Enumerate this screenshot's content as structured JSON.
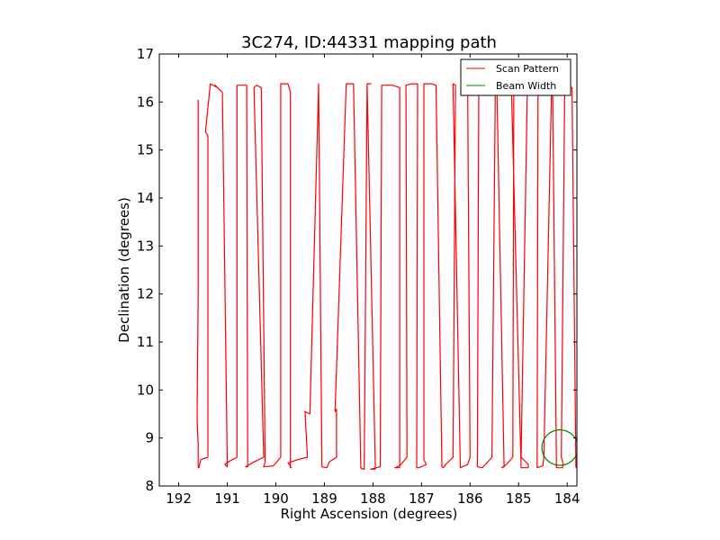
{
  "chart_data": {
    "type": "line",
    "title": "3C274, ID:44331 mapping path",
    "xlabel": "Right Ascension (degrees)",
    "ylabel": "Declination (degrees)",
    "xlim": [
      192.4,
      183.8
    ],
    "ylim": [
      8,
      17
    ],
    "x_ticks": [
      192,
      191,
      190,
      189,
      188,
      187,
      186,
      185,
      184
    ],
    "y_ticks": [
      8,
      9,
      10,
      11,
      12,
      13,
      14,
      15,
      16,
      17
    ],
    "grid": false,
    "legend_position": "top-right",
    "series": [
      {
        "name": "Scan Pattern",
        "color": "#ff0000",
        "x": [
          191.6,
          191.6,
          191.62,
          191.62,
          191.6,
          191.6,
          191.6,
          191.58,
          191.58,
          191.55,
          191.4,
          191.4,
          191.45,
          191.35,
          191.2,
          191.25,
          191.1,
          191.0,
          191.0,
          191.05,
          190.95,
          190.8,
          190.8,
          190.6,
          190.6,
          190.58,
          190.62,
          190.45,
          190.25,
          190.45,
          190.4,
          190.3,
          190.22,
          190.25,
          190.05,
          189.9,
          189.9,
          189.9,
          189.75,
          189.7,
          189.7,
          189.68,
          189.75,
          189.55,
          189.35,
          189.4,
          189.3,
          189.12,
          189.12,
          189.12,
          189.05,
          188.95,
          188.95,
          188.9,
          188.75,
          188.75,
          188.78,
          188.55,
          188.4,
          188.4,
          188.25,
          188.2,
          188.18,
          188.12,
          188.04,
          188.12,
          187.95,
          188.05,
          187.85,
          187.85,
          187.82,
          187.6,
          187.45,
          187.45,
          187.55,
          187.45,
          187.3,
          187.32,
          187.2,
          187.08,
          187.1,
          187.05,
          186.9,
          186.95,
          186.95,
          186.8,
          186.7,
          186.58,
          186.55,
          186.5,
          186.35,
          186.3,
          186.35,
          186.35,
          186.2,
          186.05,
          186.0,
          186.05,
          185.95,
          185.82,
          185.85,
          185.75,
          185.68,
          185.55,
          185.48,
          185.55,
          185.45,
          185.3,
          185.35,
          185.25,
          185.12,
          185.1,
          185.15,
          184.95,
          184.8,
          184.8,
          184.95,
          184.82,
          184.62,
          184.6,
          184.62,
          184.5,
          184.48,
          184.32,
          184.3,
          184.3,
          184.22,
          184.1,
          184.08,
          184.12,
          184.05,
          183.9,
          183.82,
          183.82
        ],
        "y": [
          16.05,
          12.0,
          9.7,
          9.35,
          8.85,
          8.5,
          8.38,
          8.38,
          8.4,
          8.55,
          8.6,
          15.3,
          15.38,
          16.38,
          16.3,
          16.35,
          16.2,
          8.5,
          8.4,
          8.45,
          8.52,
          8.6,
          16.35,
          16.35,
          16.3,
          8.4,
          8.4,
          8.5,
          8.6,
          16.3,
          16.35,
          16.3,
          8.5,
          8.4,
          8.42,
          8.6,
          16.35,
          16.38,
          16.38,
          16.2,
          8.38,
          8.38,
          8.48,
          8.55,
          8.6,
          9.55,
          9.5,
          16.35,
          16.38,
          16.38,
          8.4,
          8.38,
          8.38,
          8.5,
          8.6,
          9.6,
          9.55,
          16.38,
          16.38,
          16.38,
          8.38,
          8.35,
          8.35,
          16.38,
          16.38,
          16.38,
          8.35,
          8.35,
          8.4,
          8.45,
          16.35,
          16.35,
          16.3,
          8.38,
          8.38,
          8.42,
          8.6,
          16.35,
          16.38,
          16.38,
          8.38,
          8.38,
          8.45,
          8.55,
          16.38,
          16.38,
          16.35,
          8.4,
          8.38,
          8.45,
          8.6,
          16.35,
          16.38,
          16.35,
          8.38,
          8.45,
          8.6,
          16.38,
          16.35,
          16.38,
          8.4,
          8.38,
          8.45,
          8.6,
          16.35,
          16.38,
          16.38,
          8.4,
          8.38,
          8.45,
          8.6,
          16.35,
          16.35,
          8.38,
          8.38,
          8.45,
          8.6,
          16.35,
          16.35,
          16.38,
          8.38,
          8.42,
          8.6,
          16.35,
          16.35,
          16.3,
          8.38,
          8.38,
          8.45,
          8.6,
          16.35,
          16.3,
          8.38,
          8.38
        ]
      },
      {
        "name": "Beam Width",
        "color": "#008000",
        "shape": "circle",
        "center": [
          184.15,
          8.8
        ],
        "radius": 0.37
      }
    ]
  }
}
